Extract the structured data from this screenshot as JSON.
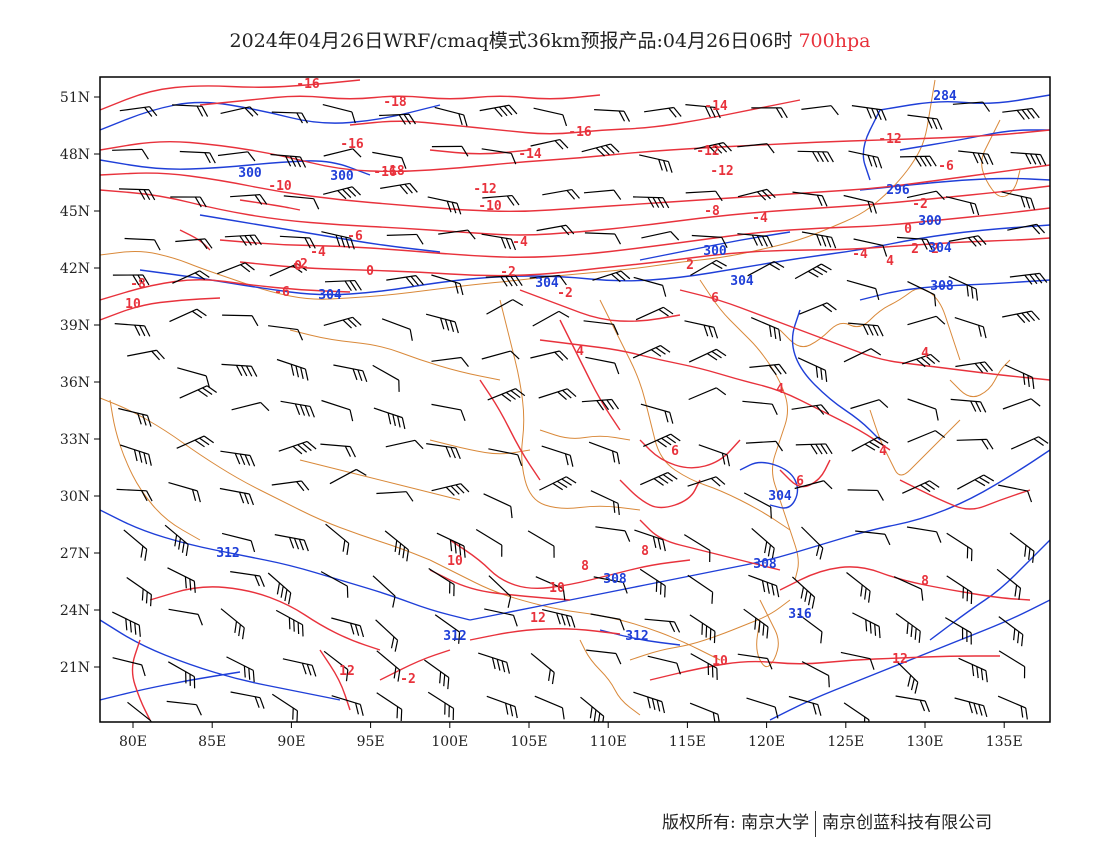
{
  "title": {
    "main": "2024年04月26日WRF/cmaq模式36km预报产品:04月26日06时",
    "level": "700hpa"
  },
  "colors": {
    "temperature": "#e8323c",
    "height": "#1f3fd8",
    "border": "#d9893a",
    "wind": "#000000"
  },
  "map": {
    "lon_ticks": [
      "80E",
      "85E",
      "90E",
      "95E",
      "100E",
      "105E",
      "110E",
      "115E",
      "120E",
      "125E",
      "130E",
      "135E"
    ],
    "lat_ticks": [
      "51N",
      "48N",
      "45N",
      "42N",
      "39N",
      "36N",
      "33N",
      "30N",
      "27N",
      "24N",
      "21N"
    ],
    "temperature_labels": [
      "-16",
      "-18",
      "-16",
      "-18",
      "-16",
      "-16",
      "-14",
      "-14",
      "-12",
      "-12",
      "-12",
      "-10",
      "-10",
      "-8",
      "-6",
      "-6",
      "-4",
      "-4",
      "-2",
      "-2",
      "-2",
      "0",
      "0",
      "2",
      "2",
      "4",
      "4",
      "4",
      "4",
      "6",
      "6",
      "6",
      "8",
      "8",
      "8",
      "10",
      "10",
      "10",
      "10",
      "12",
      "12",
      "12",
      "-2",
      "-12",
      "-4",
      "-8",
      "-4",
      "-2",
      "-6",
      "0",
      "2",
      "4"
    ],
    "height_labels": [
      "284",
      "300",
      "300",
      "296",
      "300",
      "300",
      "304",
      "304",
      "304",
      "304",
      "308",
      "304",
      "308",
      "308",
      "312",
      "312",
      "312",
      "316"
    ]
  },
  "footer": {
    "left": "版权所有: 南京大学",
    "right": "南京创蓝科技有限公司"
  }
}
